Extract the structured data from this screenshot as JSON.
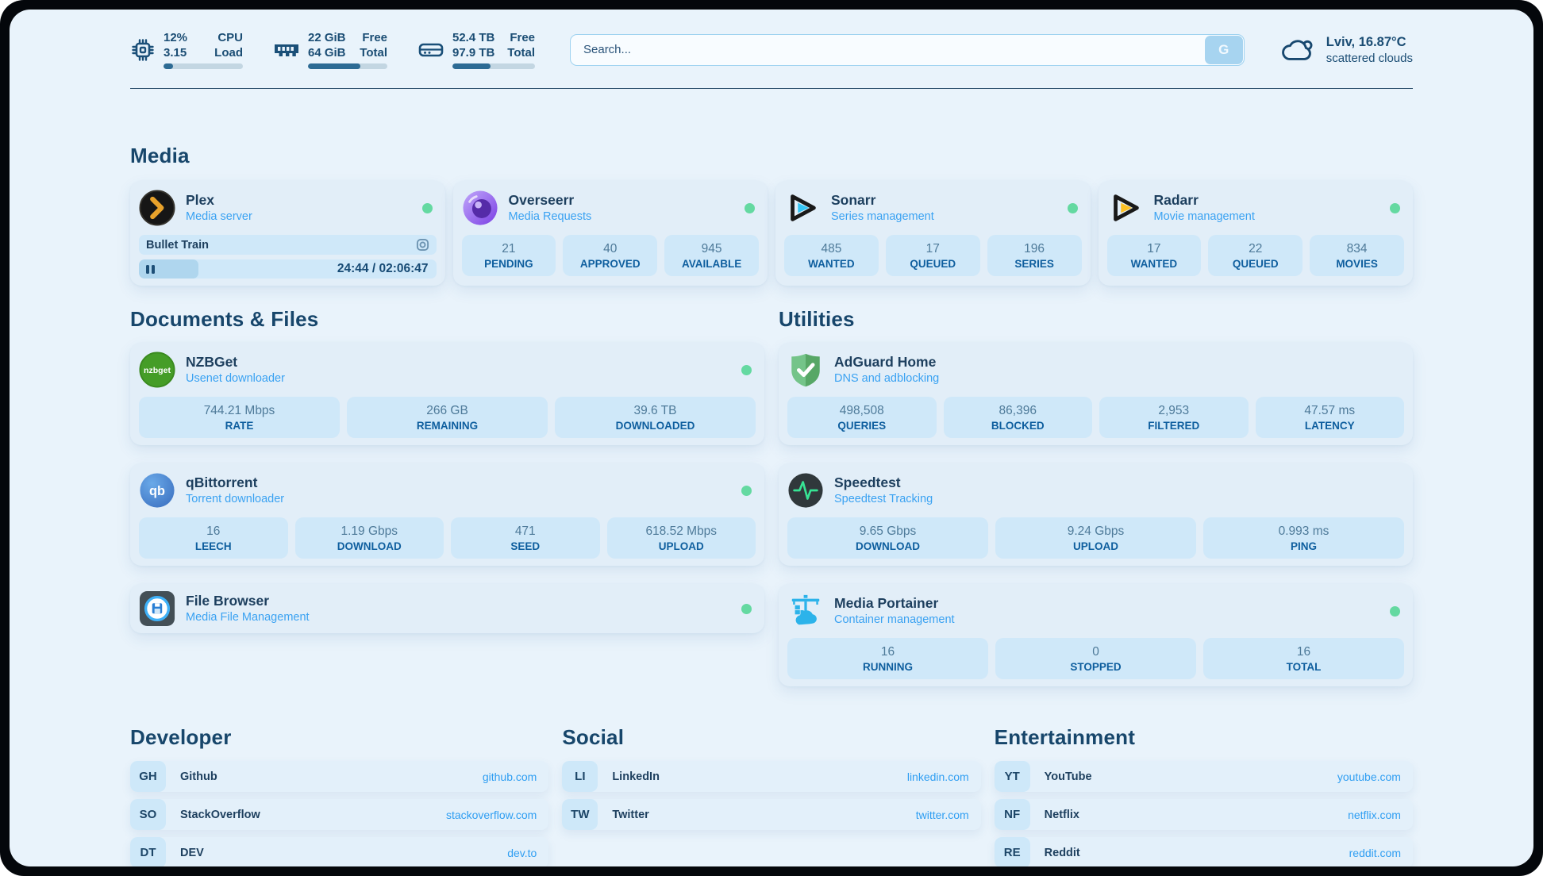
{
  "colors": {
    "panel_bg": "#e9f3fb",
    "card_bg": "#e2eef8",
    "tile_bg": "#cfe8f9",
    "accent_blue": "#2f9ef2",
    "heading": "#17466b",
    "status_online": "#64d9a1",
    "progress_fill": "#2d6b94"
  },
  "header": {
    "stats": [
      {
        "icon": "cpu-icon",
        "value_top": "12%",
        "value_bottom": "3.15",
        "label_top": "CPU",
        "label_bottom": "Load",
        "progress": 12
      },
      {
        "icon": "ram-icon",
        "value_top": "22 GiB",
        "value_bottom": "64 GiB",
        "label_top": "Free",
        "label_bottom": "Total",
        "progress": 66
      },
      {
        "icon": "disk-icon",
        "value_top": "52.4 TB",
        "value_bottom": "97.9 TB",
        "label_top": "Free",
        "label_bottom": "Total",
        "progress": 46
      }
    ],
    "search": {
      "placeholder": "Search...",
      "button_label": "G"
    },
    "weather": {
      "icon": "cloud-icon",
      "location_temp": "Lviv, 16.87°C",
      "condition": "scattered clouds"
    }
  },
  "sections": {
    "media": {
      "title": "Media",
      "apps": [
        {
          "name": "Plex",
          "subtitle": "Media server",
          "status": "online",
          "now_playing": {
            "title": "Bullet Train",
            "time": "24:44 / 02:06:47",
            "progress": 20
          }
        },
        {
          "name": "Overseerr",
          "subtitle": "Media Requests",
          "status": "online",
          "stats": [
            {
              "value": "21",
              "label": "PENDING"
            },
            {
              "value": "40",
              "label": "APPROVED"
            },
            {
              "value": "945",
              "label": "AVAILABLE"
            }
          ]
        },
        {
          "name": "Sonarr",
          "subtitle": "Series management",
          "status": "online",
          "stats": [
            {
              "value": "485",
              "label": "WANTED"
            },
            {
              "value": "17",
              "label": "QUEUED"
            },
            {
              "value": "196",
              "label": "SERIES"
            }
          ]
        },
        {
          "name": "Radarr",
          "subtitle": "Movie management",
          "status": "online",
          "stats": [
            {
              "value": "17",
              "label": "WANTED"
            },
            {
              "value": "22",
              "label": "QUEUED"
            },
            {
              "value": "834",
              "label": "MOVIES"
            }
          ]
        }
      ]
    },
    "documents": {
      "title": "Documents & Files",
      "apps": [
        {
          "name": "NZBGet",
          "subtitle": "Usenet downloader",
          "status": "online",
          "stats": [
            {
              "value": "744.21 Mbps",
              "label": "RATE"
            },
            {
              "value": "266 GB",
              "label": "REMAINING"
            },
            {
              "value": "39.6 TB",
              "label": "DOWNLOADED"
            }
          ]
        },
        {
          "name": "qBittorrent",
          "subtitle": "Torrent downloader",
          "status": "online",
          "stats": [
            {
              "value": "16",
              "label": "LEECH"
            },
            {
              "value": "1.19 Gbps",
              "label": "DOWNLOAD"
            },
            {
              "value": "471",
              "label": "SEED"
            },
            {
              "value": "618.52 Mbps",
              "label": "UPLOAD"
            }
          ]
        },
        {
          "name": "File Browser",
          "subtitle": "Media File Management",
          "status": "online"
        }
      ]
    },
    "utilities": {
      "title": "Utilities",
      "apps": [
        {
          "name": "AdGuard Home",
          "subtitle": "DNS and adblocking",
          "stats": [
            {
              "value": "498,508",
              "label": "QUERIES"
            },
            {
              "value": "86,396",
              "label": "BLOCKED"
            },
            {
              "value": "2,953",
              "label": "FILTERED"
            },
            {
              "value": "47.57 ms",
              "label": "LATENCY"
            }
          ]
        },
        {
          "name": "Speedtest",
          "subtitle": "Speedtest Tracking",
          "stats": [
            {
              "value": "9.65 Gbps",
              "label": "DOWNLOAD"
            },
            {
              "value": "9.24 Gbps",
              "label": "UPLOAD"
            },
            {
              "value": "0.993 ms",
              "label": "PING"
            }
          ]
        },
        {
          "name": "Media Portainer",
          "subtitle": "Container management",
          "status": "online",
          "stats": [
            {
              "value": "16",
              "label": "RUNNING"
            },
            {
              "value": "0",
              "label": "STOPPED"
            },
            {
              "value": "16",
              "label": "TOTAL"
            }
          ]
        }
      ]
    },
    "bookmarks": [
      {
        "title": "Developer",
        "links": [
          {
            "tag": "GH",
            "name": "Github",
            "url": "github.com"
          },
          {
            "tag": "SO",
            "name": "StackOverflow",
            "url": "stackoverflow.com"
          },
          {
            "tag": "DT",
            "name": "DEV",
            "url": "dev.to"
          }
        ]
      },
      {
        "title": "Social",
        "links": [
          {
            "tag": "LI",
            "name": "LinkedIn",
            "url": "linkedin.com"
          },
          {
            "tag": "TW",
            "name": "Twitter",
            "url": "twitter.com"
          }
        ]
      },
      {
        "title": "Entertainment",
        "links": [
          {
            "tag": "YT",
            "name": "YouTube",
            "url": "youtube.com"
          },
          {
            "tag": "NF",
            "name": "Netflix",
            "url": "netflix.com"
          },
          {
            "tag": "RE",
            "name": "Reddit",
            "url": "reddit.com"
          }
        ]
      }
    ]
  }
}
